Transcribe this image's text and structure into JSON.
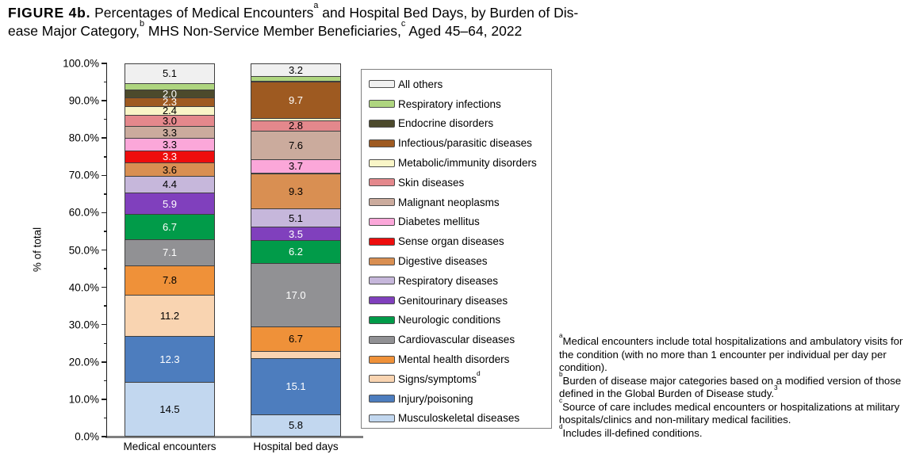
{
  "figure_title": {
    "tag": "FIGURE 4b.",
    "line1_text": " Percentages of Medical Encounters",
    "sup_a": "a",
    "line1_rest": " and Hospital Bed Days, by Burden of Dis-",
    "line2_start": "ease Major Category,",
    "sup_b": "b",
    "line2_mid": " MHS Non-Service Member Beneficiaries,",
    "sup_c": "c",
    "line2_end": " Aged 45–64, 2022"
  },
  "chart_data": {
    "type": "bar",
    "stacked": true,
    "ylabel": "% of total",
    "xlabel": "",
    "ylim": [
      0,
      100
    ],
    "y_tick_labels": [
      "0.0%",
      "10.0%",
      "20.0%",
      "30.0%",
      "40.0%",
      "50.0%",
      "60.0%",
      "70.0%",
      "80.0%",
      "90.0%",
      "100.0%"
    ],
    "y_minor_tick_step": 5,
    "grid": false,
    "legend_position": "right",
    "categories": [
      "Medical encounters",
      "Hospital bed days"
    ],
    "series_order_note": "top of stack to bottom, same as legend order",
    "series": [
      {
        "name": "All others",
        "color": "#f0f0f0",
        "values": [
          5.1,
          3.2
        ],
        "labels": [
          "5.1",
          "3.2"
        ],
        "label_color": "#000000"
      },
      {
        "name": "Respiratory infections",
        "color": "#aed57f",
        "values": [
          1.8,
          1.3
        ],
        "labels": [
          null,
          null
        ],
        "label_color": "#000000"
      },
      {
        "name": "Endocrine disorders",
        "color": "#4c4a2c",
        "values": [
          2.0,
          0.2
        ],
        "labels": [
          "2.0",
          null
        ],
        "label_color": "#ffffff"
      },
      {
        "name": "Infectious/parasitic diseases",
        "color": "#9e5a21",
        "values": [
          2.3,
          9.7
        ],
        "labels": [
          "2.3",
          "9.7"
        ],
        "label_color": "#ffffff"
      },
      {
        "name": "Metabolic/immunity disorders",
        "color": "#f9f5c7",
        "values": [
          2.4,
          0.7
        ],
        "labels": [
          "2.4",
          null
        ],
        "label_color": "#000000"
      },
      {
        "name": "Skin diseases",
        "color": "#e4888c",
        "values": [
          3.0,
          2.8
        ],
        "labels": [
          "3.0",
          "2.8"
        ],
        "label_color": "#000000"
      },
      {
        "name": "Malignant neoplasms",
        "color": "#cbab9d",
        "values": [
          3.3,
          7.6
        ],
        "labels": [
          "3.3",
          "7.6"
        ],
        "label_color": "#000000"
      },
      {
        "name": "Diabetes mellitus",
        "color": "#fba7d9",
        "values": [
          3.3,
          3.7
        ],
        "labels": [
          "3.3",
          "3.7"
        ],
        "label_color": "#000000"
      },
      {
        "name": "Sense organ diseases",
        "color": "#ee0d0d",
        "values": [
          3.3,
          0.2
        ],
        "labels": [
          "3.3",
          null
        ],
        "label_color": "#ffffff"
      },
      {
        "name": "Digestive diseases",
        "color": "#d98f52",
        "values": [
          3.6,
          9.3
        ],
        "labels": [
          "3.6",
          "9.3"
        ],
        "label_color": "#000000"
      },
      {
        "name": "Respiratory diseases",
        "color": "#c6b7db",
        "values": [
          4.4,
          5.1
        ],
        "labels": [
          "4.4",
          "5.1"
        ],
        "label_color": "#000000"
      },
      {
        "name": "Genitourinary diseases",
        "color": "#8040bd",
        "values": [
          5.9,
          3.5
        ],
        "labels": [
          "5.9",
          "3.5"
        ],
        "label_color": "#ffffff"
      },
      {
        "name": "Neurologic conditions",
        "color": "#019b49",
        "values": [
          6.7,
          6.2
        ],
        "labels": [
          "6.7",
          "6.2"
        ],
        "label_color": "#ffffff"
      },
      {
        "name": "Cardiovascular diseases",
        "color": "#919194",
        "values": [
          7.1,
          17.0
        ],
        "labels": [
          "7.1",
          "17.0"
        ],
        "label_color": "#ffffff"
      },
      {
        "name": "Mental health disorders",
        "color": "#ef9139",
        "values": [
          7.8,
          6.7
        ],
        "labels": [
          "7.8",
          "6.7"
        ],
        "label_color": "#000000"
      },
      {
        "name": "Signs/symptoms",
        "color": "#f9d4b1",
        "values": [
          11.2,
          1.9
        ],
        "labels": [
          "11.2",
          null
        ],
        "label_color": "#000000",
        "legend_sup": "d"
      },
      {
        "name": "Injury/poisoning",
        "color": "#4d7dbe",
        "values": [
          12.3,
          15.1
        ],
        "labels": [
          "12.3",
          "15.1"
        ],
        "label_color": "#ffffff"
      },
      {
        "name": "Musculoskeletal diseases",
        "color": "#c2d7ef",
        "values": [
          14.5,
          5.8
        ],
        "labels": [
          "14.5",
          "5.8"
        ],
        "label_color": "#000000"
      }
    ]
  },
  "footnotes": [
    {
      "sup": "a",
      "text": "Medical encounters include total hospitalizations and ambulatory visits for the condition (with no more than 1 encounter per individual per day per condition)."
    },
    {
      "sup": "b",
      "text": "Burden of disease major categories based on a modified version of those defined in the Global Burden of Disease study.",
      "tail_sup": "3"
    },
    {
      "sup": "c",
      "text": "Source of care includes medical encounters or hospitalizations at military hospitals/clinics and non-military medical facilities."
    },
    {
      "sup": "d",
      "text": "Includes ill-defined conditions."
    }
  ]
}
